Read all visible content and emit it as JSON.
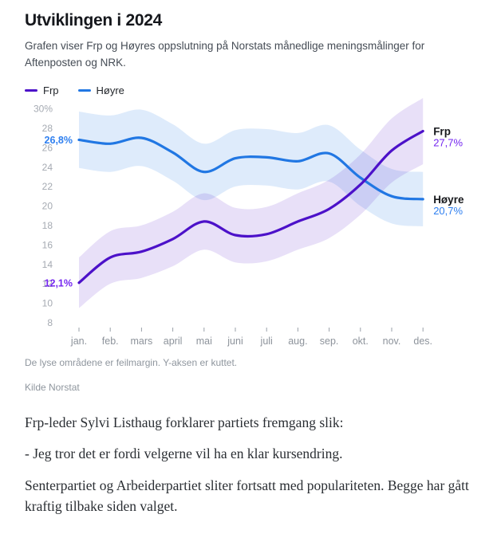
{
  "header": {
    "title": "Utviklingen i 2024",
    "subtitle": "Grafen viser Frp og Høyres oppslutning på Norstats månedlige meningsmålinger for Aftenposten og NRK."
  },
  "legend": {
    "items": [
      {
        "label": "Frp",
        "color": "#4c11c9"
      },
      {
        "label": "Høyre",
        "color": "#2177e3"
      }
    ]
  },
  "chart_data": {
    "type": "line",
    "x": [
      "jan.",
      "feb.",
      "mars",
      "april",
      "mai",
      "juni",
      "juli",
      "aug.",
      "sep.",
      "okt.",
      "nov.",
      "des."
    ],
    "ylim": [
      8,
      31
    ],
    "yticks": [
      30,
      28,
      26,
      24,
      22,
      20,
      18,
      16,
      14,
      12,
      10,
      8
    ],
    "ytick_labels": [
      "30%",
      "28",
      "26",
      "24",
      "22",
      "20",
      "18",
      "16",
      "14",
      "12",
      "10",
      "8"
    ],
    "grid": false,
    "legend_position": "top-left",
    "series": [
      {
        "name": "Frp",
        "color": "#4c11c9",
        "label_color": "#7527f0",
        "values": [
          12.1,
          14.7,
          15.3,
          16.6,
          18.4,
          17.0,
          17.1,
          18.4,
          19.7,
          22.2,
          25.7,
          27.7
        ],
        "margin": [
          2.6,
          2.7,
          2.7,
          2.8,
          2.9,
          2.8,
          2.8,
          2.9,
          3.0,
          3.1,
          3.3,
          3.4
        ],
        "start_label": "12,1%",
        "end_label": "27,7%"
      },
      {
        "name": "Høyre",
        "color": "#2177e3",
        "label_color": "#2e7ff0",
        "values": [
          26.8,
          26.4,
          27.0,
          25.5,
          23.5,
          24.9,
          25.0,
          24.6,
          25.4,
          22.9,
          21.0,
          20.7
        ],
        "margin": [
          2.9,
          2.9,
          2.9,
          2.9,
          2.9,
          2.9,
          2.9,
          2.9,
          2.9,
          2.9,
          2.8,
          2.8
        ],
        "start_label": "26,8%",
        "end_label": "20,7%"
      }
    ],
    "footnote": "De lyse områdene er feilmargin. Y-aksen er kuttet.",
    "source": "Kilde Norstat"
  },
  "article": {
    "paragraphs": [
      "Frp-leder Sylvi Listhaug forklarer partiets fremgang slik:",
      "- Jeg tror det er fordi velgerne vil ha en klar kursendring.",
      "Senterpartiet og Arbeiderpartiet sliter fortsatt med populariteten. Begge har gått kraftig tilbake siden valget."
    ]
  }
}
